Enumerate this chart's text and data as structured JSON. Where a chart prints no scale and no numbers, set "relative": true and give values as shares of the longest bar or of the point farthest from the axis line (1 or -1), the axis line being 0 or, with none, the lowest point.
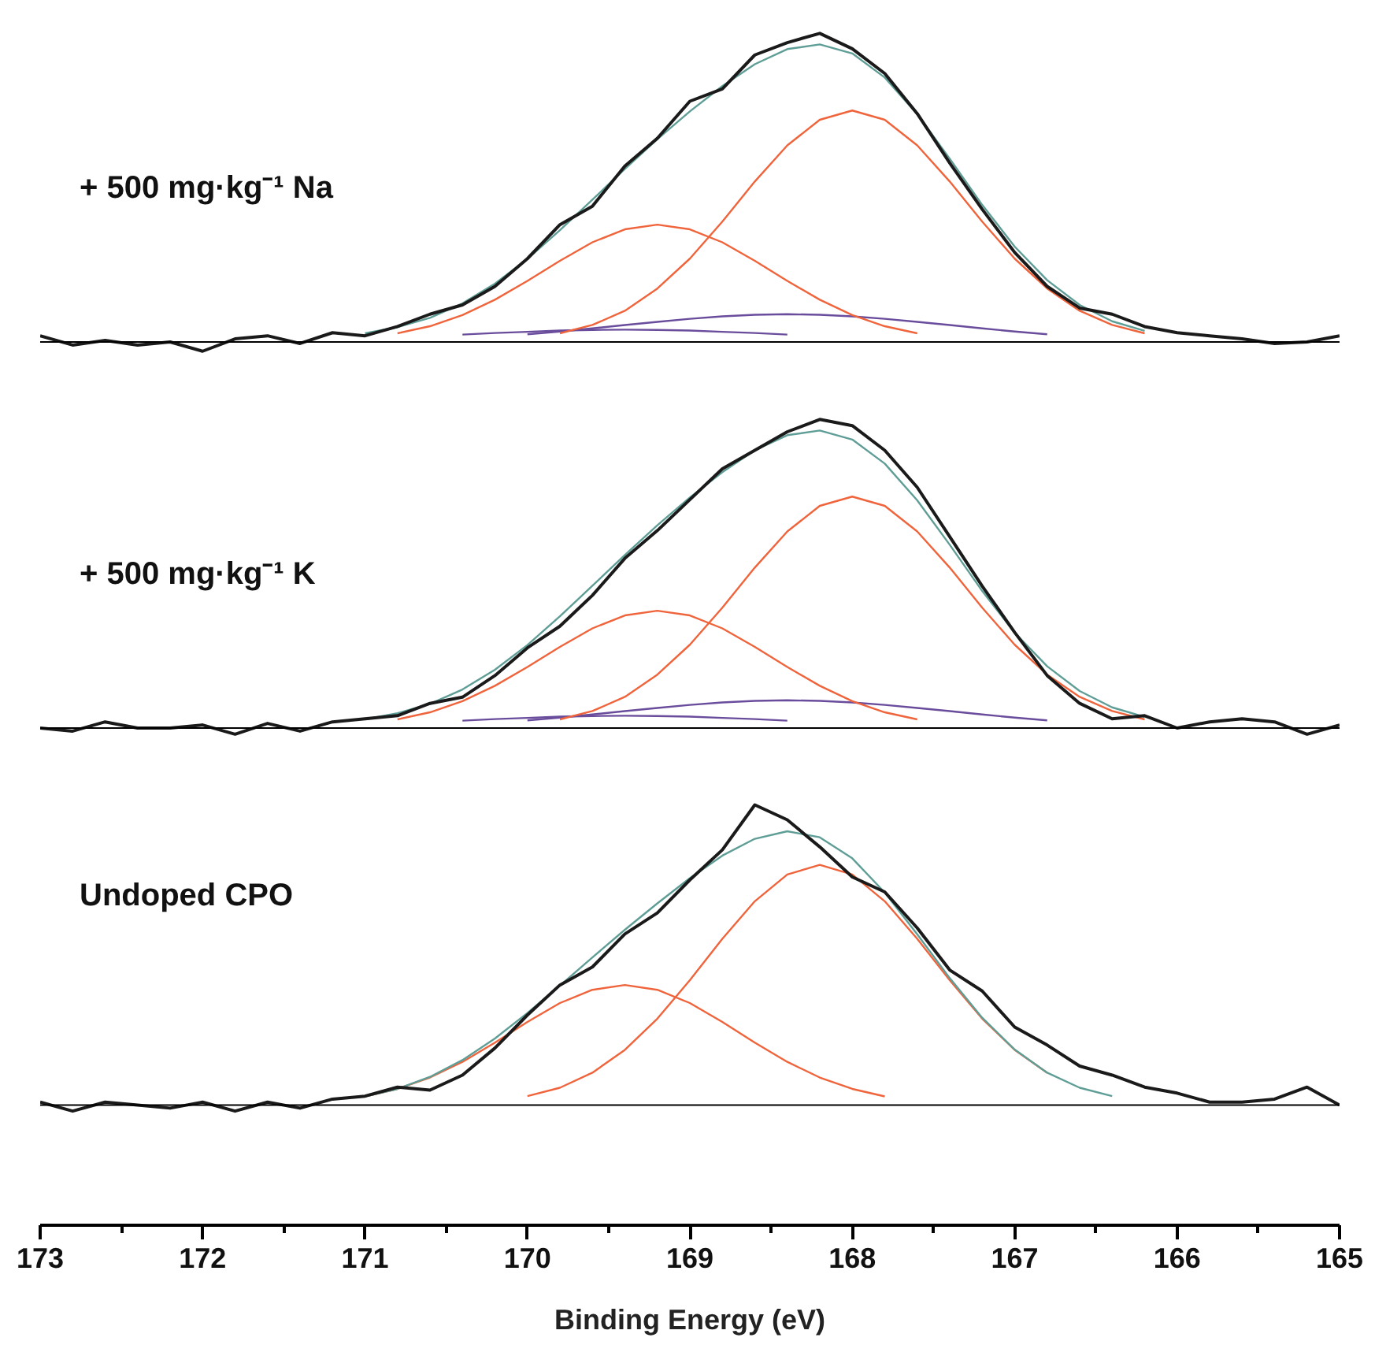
{
  "chart_data": [
    {
      "type": "line",
      "title": "+ 500 mg·kg⁻¹ Na",
      "relative": true,
      "tick_labels": false,
      "xlim": [
        173,
        165
      ],
      "x": [
        173.0,
        172.8,
        172.6,
        172.4,
        172.2,
        172.0,
        171.8,
        171.6,
        171.4,
        171.2,
        171.0,
        170.8,
        170.6,
        170.4,
        170.2,
        170.0,
        169.8,
        169.6,
        169.4,
        169.2,
        169.0,
        168.8,
        168.6,
        168.4,
        168.2,
        168.0,
        167.8,
        167.6,
        167.4,
        167.2,
        167.0,
        166.8,
        166.6,
        166.4,
        166.2,
        166.0,
        165.8,
        165.6,
        165.4,
        165.2,
        165.0
      ],
      "ref_lines": [
        {
          "axis": "y",
          "value": 0,
          "color": "#000000"
        }
      ],
      "series": [
        {
          "color": "#6a4c9c",
          "x": [
            170.0,
            169.8,
            169.6,
            169.4,
            169.2,
            169.0,
            168.8,
            168.6,
            168.4,
            168.2,
            168.0,
            167.8,
            167.6,
            167.4,
            167.2,
            167.0,
            166.8
          ],
          "values": [
            0.025,
            0.034,
            0.044,
            0.055,
            0.065,
            0.075,
            0.083,
            0.088,
            0.09,
            0.088,
            0.083,
            0.075,
            0.065,
            0.055,
            0.044,
            0.034,
            0.025
          ]
        },
        {
          "color": "#6a4c9c",
          "x": [
            170.4,
            170.2,
            170.0,
            169.8,
            169.6,
            169.4,
            169.2,
            169.0,
            168.8,
            168.6,
            168.4
          ],
          "values": [
            0.024,
            0.029,
            0.033,
            0.037,
            0.039,
            0.04,
            0.039,
            0.037,
            0.033,
            0.029,
            0.024
          ]
        },
        {
          "color": "#f0643c",
          "x": [
            170.8,
            170.6,
            170.4,
            170.2,
            170.0,
            169.8,
            169.6,
            169.4,
            169.2,
            169.0,
            168.8,
            168.6,
            168.4,
            168.2,
            168.0,
            167.8,
            167.6
          ],
          "values": [
            0.028,
            0.051,
            0.087,
            0.137,
            0.198,
            0.263,
            0.323,
            0.365,
            0.38,
            0.365,
            0.323,
            0.263,
            0.198,
            0.137,
            0.087,
            0.051,
            0.028
          ]
        },
        {
          "color": "#f0643c",
          "x": [
            169.8,
            169.6,
            169.4,
            169.2,
            169.0,
            168.8,
            168.6,
            168.4,
            168.2,
            168.0,
            167.8,
            167.6,
            167.4,
            167.2,
            167.0,
            166.8,
            166.6,
            166.4,
            166.2
          ],
          "values": [
            0.028,
            0.055,
            0.101,
            0.173,
            0.27,
            0.39,
            0.52,
            0.637,
            0.72,
            0.75,
            0.72,
            0.637,
            0.52,
            0.39,
            0.27,
            0.173,
            0.101,
            0.055,
            0.028
          ]
        },
        {
          "color": "#5f9e96",
          "x": [
            171.0,
            170.8,
            170.6,
            170.4,
            170.2,
            170.0,
            169.8,
            169.6,
            169.4,
            169.2,
            169.0,
            168.8,
            168.6,
            168.4,
            168.2,
            168.0,
            167.8,
            167.6,
            167.4,
            167.2,
            167.0,
            166.8,
            166.6,
            166.4,
            166.2
          ],
          "values": [
            0.028,
            0.048,
            0.078,
            0.125,
            0.189,
            0.269,
            0.362,
            0.461,
            0.561,
            0.657,
            0.747,
            0.829,
            0.9,
            0.949,
            0.964,
            0.935,
            0.857,
            0.738,
            0.594,
            0.444,
            0.309,
            0.2,
            0.12,
            0.067,
            0.036
          ]
        },
        {
          "color": "#1a1a1a",
          "values": [
            0.02,
            -0.01,
            0.005,
            -0.01,
            0,
            -0.03,
            0.01,
            0.02,
            -0.005,
            0.03,
            0.02,
            0.05,
            0.09,
            0.12,
            0.18,
            0.27,
            0.38,
            0.44,
            0.57,
            0.66,
            0.78,
            0.82,
            0.93,
            0.97,
            1.0,
            0.95,
            0.87,
            0.74,
            0.58,
            0.43,
            0.29,
            0.18,
            0.11,
            0.09,
            0.05,
            0.03,
            0.02,
            0.01,
            -0.005,
            0,
            0.02
          ]
        }
      ]
    },
    {
      "type": "line",
      "title": "+ 500 mg·kg⁻¹ K",
      "relative": true,
      "tick_labels": false,
      "xlim": [
        173,
        165
      ],
      "x": [
        173.0,
        172.8,
        172.6,
        172.4,
        172.2,
        172.0,
        171.8,
        171.6,
        171.4,
        171.2,
        171.0,
        170.8,
        170.6,
        170.4,
        170.2,
        170.0,
        169.8,
        169.6,
        169.4,
        169.2,
        169.0,
        168.8,
        168.6,
        168.4,
        168.2,
        168.0,
        167.8,
        167.6,
        167.4,
        167.2,
        167.0,
        166.8,
        166.6,
        166.4,
        166.2,
        166.0,
        165.8,
        165.6,
        165.4,
        165.2,
        165.0
      ],
      "ref_lines": [
        {
          "axis": "y",
          "value": 0,
          "color": "#000000"
        }
      ],
      "series": [
        {
          "color": "#6a4c9c",
          "x": [
            170.0,
            169.8,
            169.6,
            169.4,
            169.2,
            169.0,
            168.8,
            168.6,
            168.4,
            168.2,
            168.0,
            167.8,
            167.6,
            167.4,
            167.2,
            167.0,
            166.8
          ],
          "values": [
            0.025,
            0.034,
            0.044,
            0.055,
            0.065,
            0.075,
            0.083,
            0.088,
            0.09,
            0.088,
            0.083,
            0.075,
            0.065,
            0.055,
            0.044,
            0.034,
            0.025
          ]
        },
        {
          "color": "#6a4c9c",
          "x": [
            170.4,
            170.2,
            170.0,
            169.8,
            169.6,
            169.4,
            169.2,
            169.0,
            168.8,
            168.6,
            168.4
          ],
          "values": [
            0.024,
            0.029,
            0.033,
            0.037,
            0.039,
            0.04,
            0.039,
            0.037,
            0.033,
            0.029,
            0.024
          ]
        },
        {
          "color": "#f0643c",
          "x": [
            170.8,
            170.6,
            170.4,
            170.2,
            170.0,
            169.8,
            169.6,
            169.4,
            169.2,
            169.0,
            168.8,
            168.6,
            168.4,
            168.2,
            168.0,
            167.8,
            167.6
          ],
          "values": [
            0.028,
            0.051,
            0.087,
            0.137,
            0.198,
            0.263,
            0.323,
            0.365,
            0.38,
            0.365,
            0.323,
            0.263,
            0.198,
            0.137,
            0.087,
            0.051,
            0.028
          ]
        },
        {
          "color": "#f0643c",
          "x": [
            169.8,
            169.6,
            169.4,
            169.2,
            169.0,
            168.8,
            168.6,
            168.4,
            168.2,
            168.0,
            167.8,
            167.6,
            167.4,
            167.2,
            167.0,
            166.8,
            166.6,
            166.4,
            166.2
          ],
          "values": [
            0.028,
            0.055,
            0.101,
            0.173,
            0.27,
            0.39,
            0.52,
            0.637,
            0.72,
            0.75,
            0.72,
            0.637,
            0.52,
            0.39,
            0.27,
            0.173,
            0.101,
            0.055,
            0.028
          ]
        },
        {
          "color": "#5f9e96",
          "x": [
            171.0,
            170.8,
            170.6,
            170.4,
            170.2,
            170.0,
            169.8,
            169.6,
            169.4,
            169.2,
            169.0,
            168.8,
            168.6,
            168.4,
            168.2,
            168.0,
            167.8,
            167.6,
            167.4,
            167.2,
            167.0,
            166.8,
            166.6,
            166.4,
            166.2
          ],
          "values": [
            0.028,
            0.048,
            0.078,
            0.125,
            0.189,
            0.269,
            0.362,
            0.461,
            0.561,
            0.657,
            0.747,
            0.829,
            0.9,
            0.949,
            0.964,
            0.935,
            0.857,
            0.738,
            0.594,
            0.444,
            0.309,
            0.2,
            0.12,
            0.067,
            0.036
          ]
        },
        {
          "color": "#1a1a1a",
          "values": [
            0,
            -0.01,
            0.02,
            0,
            0,
            0.01,
            -0.02,
            0.015,
            -0.01,
            0.02,
            0.03,
            0.04,
            0.08,
            0.1,
            0.17,
            0.26,
            0.33,
            0.43,
            0.55,
            0.64,
            0.74,
            0.84,
            0.9,
            0.96,
            1.0,
            0.98,
            0.9,
            0.78,
            0.62,
            0.46,
            0.31,
            0.17,
            0.08,
            0.03,
            0.04,
            0,
            0.02,
            0.03,
            0.02,
            -0.02,
            0.01
          ]
        }
      ]
    },
    {
      "type": "line",
      "title": "Undoped CPO",
      "relative": true,
      "tick_labels": "x",
      "xlim": [
        173,
        165
      ],
      "xlabel": "Binding Energy (eV)",
      "xticks": [
        173,
        172,
        171,
        170,
        169,
        168,
        167,
        166,
        165
      ],
      "x": [
        173.0,
        172.8,
        172.6,
        172.4,
        172.2,
        172.0,
        171.8,
        171.6,
        171.4,
        171.2,
        171.0,
        170.8,
        170.6,
        170.4,
        170.2,
        170.0,
        169.8,
        169.6,
        169.4,
        169.2,
        169.0,
        168.8,
        168.6,
        168.4,
        168.2,
        168.0,
        167.8,
        167.6,
        167.4,
        167.2,
        167.0,
        166.8,
        166.6,
        166.4,
        166.2,
        166.0,
        165.8,
        165.6,
        165.4,
        165.2,
        165.0
      ],
      "ref_lines": [
        {
          "axis": "y",
          "value": 0,
          "color": "#000000"
        }
      ],
      "series": [
        {
          "color": "#f0643c",
          "x": [
            171.0,
            170.8,
            170.6,
            170.4,
            170.2,
            170.0,
            169.8,
            169.6,
            169.4,
            169.2,
            169.0,
            168.8,
            168.6,
            168.4,
            168.2,
            168.0,
            167.8
          ],
          "values": [
            0.029,
            0.054,
            0.092,
            0.144,
            0.208,
            0.277,
            0.34,
            0.384,
            0.4,
            0.384,
            0.34,
            0.277,
            0.208,
            0.144,
            0.092,
            0.054,
            0.029
          ]
        },
        {
          "color": "#f0643c",
          "x": [
            170.0,
            169.8,
            169.6,
            169.4,
            169.2,
            169.0,
            168.8,
            168.6,
            168.4,
            168.2,
            168.0,
            167.8,
            167.6,
            167.4,
            167.2,
            167.0,
            166.8
          ],
          "values": [
            0.03,
            0.058,
            0.108,
            0.184,
            0.288,
            0.416,
            0.554,
            0.679,
            0.768,
            0.8,
            0.768,
            0.679,
            0.554,
            0.416,
            0.288,
            0.184,
            0.108
          ]
        },
        {
          "color": "#5f9e96",
          "x": [
            171.0,
            170.8,
            170.6,
            170.4,
            170.2,
            170.0,
            169.8,
            169.6,
            169.4,
            169.2,
            169.0,
            168.8,
            168.6,
            168.4,
            168.2,
            168.0,
            167.8,
            167.6,
            167.4,
            167.2,
            167.0,
            166.8,
            166.6,
            166.4
          ],
          "values": [
            0.029,
            0.054,
            0.094,
            0.15,
            0.222,
            0.307,
            0.398,
            0.492,
            0.584,
            0.672,
            0.756,
            0.831,
            0.887,
            0.912,
            0.892,
            0.822,
            0.708,
            0.569,
            0.423,
            0.291,
            0.185,
            0.108,
            0.058,
            0.03
          ]
        },
        {
          "color": "#1a1a1a",
          "values": [
            0.01,
            -0.02,
            0.01,
            0,
            -0.01,
            0.01,
            -0.02,
            0.01,
            -0.01,
            0.02,
            0.03,
            0.06,
            0.05,
            0.1,
            0.19,
            0.3,
            0.4,
            0.46,
            0.57,
            0.64,
            0.75,
            0.85,
            1.0,
            0.95,
            0.86,
            0.76,
            0.71,
            0.59,
            0.45,
            0.38,
            0.26,
            0.2,
            0.13,
            0.1,
            0.06,
            0.04,
            0.01,
            0.01,
            0.02,
            0.06,
            0
          ]
        }
      ]
    }
  ]
}
